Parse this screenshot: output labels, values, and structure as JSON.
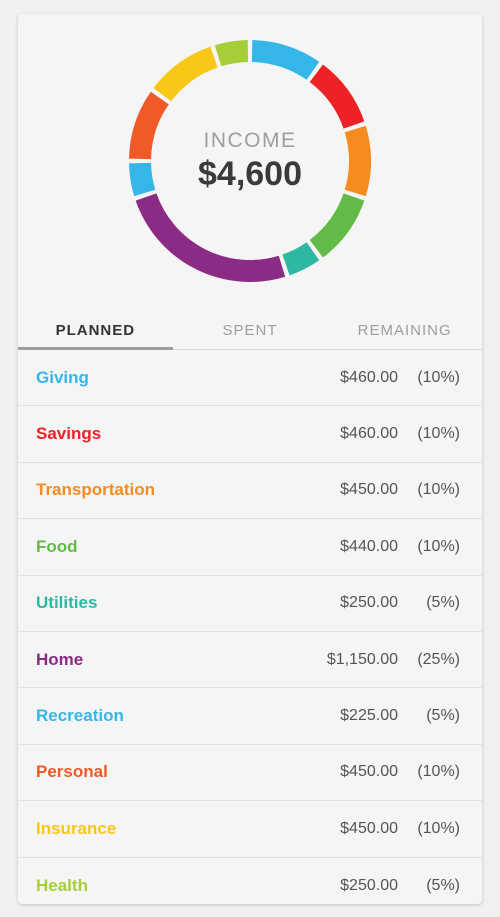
{
  "background_color": "#f0f0f0",
  "card_background": "#f5f5f5",
  "donut": {
    "center_label": "INCOME",
    "center_amount": "$4,600",
    "center_label_color": "#9e9e9e",
    "center_amount_color": "#3a3a3a",
    "center_label_fontsize": 21,
    "center_amount_fontsize": 34,
    "ring_thickness": 22,
    "outer_radius": 121,
    "gap_degrees": 2.2,
    "segments": [
      {
        "label": "Giving",
        "percent": 10,
        "color": "#35b6e8"
      },
      {
        "label": "Savings",
        "percent": 10,
        "color": "#ec2227"
      },
      {
        "label": "Transportation",
        "percent": 10,
        "color": "#f68b1f"
      },
      {
        "label": "Food",
        "percent": 10,
        "color": "#62bb46"
      },
      {
        "label": "Utilities",
        "percent": 5,
        "color": "#2fb8a1"
      },
      {
        "label": "Home",
        "percent": 25,
        "color": "#8c2b86"
      },
      {
        "label": "Recreation",
        "percent": 5,
        "color": "#35b6e8"
      },
      {
        "label": "Personal",
        "percent": 10,
        "color": "#f05a28"
      },
      {
        "label": "Insurance",
        "percent": 10,
        "color": "#f9c717"
      },
      {
        "label": "Health",
        "percent": 5,
        "color": "#a6ce39"
      }
    ]
  },
  "tabs": {
    "items": [
      {
        "label": "PLANNED",
        "active": true
      },
      {
        "label": "SPENT",
        "active": false
      },
      {
        "label": "REMAINING",
        "active": false
      }
    ],
    "active_underline_color": "#9e9e9e",
    "inactive_color": "#9e9e9e",
    "active_color": "#333333"
  },
  "list": {
    "row_border_color": "#e2e2e2",
    "amount_color": "#555555",
    "items": [
      {
        "name": "Giving",
        "amount": "$460.00",
        "percent": "(10%)",
        "color": "#35b6e8"
      },
      {
        "name": "Savings",
        "amount": "$460.00",
        "percent": "(10%)",
        "color": "#ec2227"
      },
      {
        "name": "Transportation",
        "amount": "$450.00",
        "percent": "(10%)",
        "color": "#f68b1f"
      },
      {
        "name": "Food",
        "amount": "$440.00",
        "percent": "(10%)",
        "color": "#62bb46"
      },
      {
        "name": "Utilities",
        "amount": "$250.00",
        "percent": "(5%)",
        "color": "#2fb8a1"
      },
      {
        "name": "Home",
        "amount": "$1,150.00",
        "percent": "(25%)",
        "color": "#8c2b86"
      },
      {
        "name": "Recreation",
        "amount": "$225.00",
        "percent": "(5%)",
        "color": "#35b6e8"
      },
      {
        "name": "Personal",
        "amount": "$450.00",
        "percent": "(10%)",
        "color": "#f05a28"
      },
      {
        "name": "Insurance",
        "amount": "$450.00",
        "percent": "(10%)",
        "color": "#f9c717"
      },
      {
        "name": "Health",
        "amount": "$250.00",
        "percent": "(5%)",
        "color": "#a6ce39"
      }
    ]
  }
}
